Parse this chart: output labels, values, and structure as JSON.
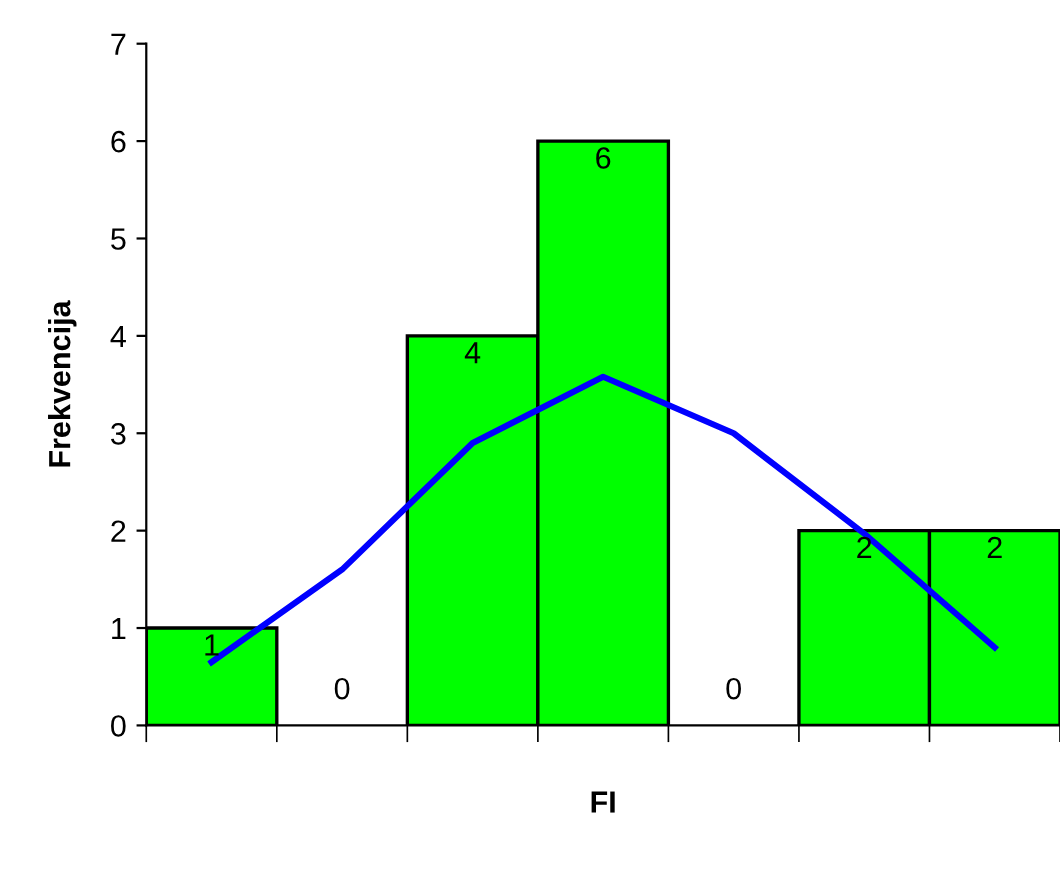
{
  "chart_data": {
    "type": "bar",
    "xlabel": "FI",
    "ylabel": "Frekvencija",
    "categories": [
      null,
      null,
      null,
      null,
      null,
      null,
      null
    ],
    "ylim": [
      0,
      7
    ],
    "yticks": [
      0,
      1,
      2,
      3,
      4,
      5,
      6,
      7
    ],
    "series": [
      {
        "color": "#00ff00",
        "values": [
          1,
          0,
          4,
          6,
          0,
          2,
          2
        ],
        "value_labels": [
          "1",
          "0",
          "4",
          "6",
          "0",
          "2",
          "2"
        ]
      },
      {
        "type": "line",
        "color": "#0000ff",
        "values": [
          0.65,
          1.6,
          2.9,
          3.58,
          3.0,
          1.97,
          0.8
        ]
      }
    ]
  }
}
